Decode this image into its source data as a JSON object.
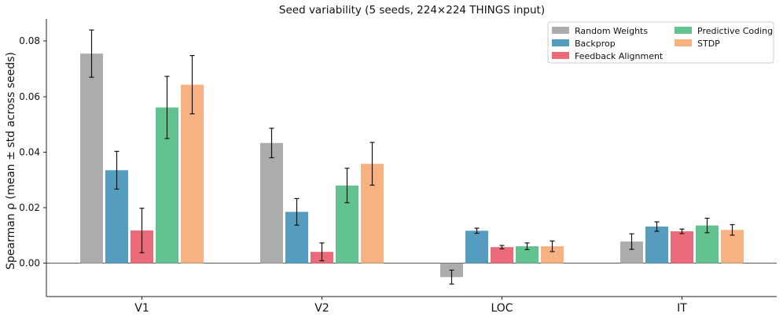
{
  "chart_data": {
    "type": "bar",
    "title": "Seed variability (5 seeds, 224×224 THINGS input)",
    "xlabel": "",
    "ylabel": "Spearman ρ (mean ± std across seeds)",
    "categories": [
      "V1",
      "V2",
      "LOC",
      "IT"
    ],
    "ylim": [
      -0.012,
      0.088
    ],
    "yticks": [
      0.0,
      0.02,
      0.04,
      0.06,
      0.08
    ],
    "ytick_labels": [
      "0.00",
      "0.02",
      "0.04",
      "0.06",
      "0.08"
    ],
    "grid": false,
    "legend_placement": "top-right",
    "series": [
      {
        "name": "Random Weights",
        "color": "#acacac",
        "values": [
          0.0755,
          0.0433,
          -0.005,
          0.0078
        ],
        "errors": [
          0.0085,
          0.0053,
          0.0025,
          0.0028
        ]
      },
      {
        "name": "Backprop",
        "color": "#559dbe",
        "values": [
          0.0335,
          0.0185,
          0.0117,
          0.0132
        ],
        "errors": [
          0.0068,
          0.0048,
          0.0009,
          0.0017
        ]
      },
      {
        "name": "Feedback Alignment",
        "color": "#eb6b7a",
        "values": [
          0.0118,
          0.0041,
          0.0058,
          0.0115
        ],
        "errors": [
          0.008,
          0.0032,
          0.0006,
          0.0008
        ]
      },
      {
        "name": "Predictive Coding",
        "color": "#62c290",
        "values": [
          0.0561,
          0.028,
          0.0061,
          0.0136
        ],
        "errors": [
          0.0112,
          0.0062,
          0.0012,
          0.0026
        ]
      },
      {
        "name": "STDP",
        "color": "#f7b281",
        "values": [
          0.0643,
          0.0358,
          0.0061,
          0.012
        ],
        "errors": [
          0.0105,
          0.0077,
          0.0019,
          0.0019
        ]
      }
    ]
  }
}
